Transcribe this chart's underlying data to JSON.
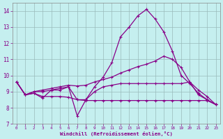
{
  "xlabel": "Windchill (Refroidissement éolien,°C)",
  "bg_color": "#c5efef",
  "line_color": "#880088",
  "grid_color": "#99bbbb",
  "ylim": [
    7,
    14.5
  ],
  "xlim": [
    -0.5,
    23.5
  ],
  "yticks": [
    7,
    8,
    9,
    10,
    11,
    12,
    13,
    14
  ],
  "xticks": [
    0,
    1,
    2,
    3,
    4,
    5,
    6,
    7,
    8,
    9,
    10,
    11,
    12,
    13,
    14,
    15,
    16,
    17,
    18,
    19,
    20,
    21,
    22,
    23
  ],
  "series": [
    [
      9.6,
      8.8,
      8.9,
      8.6,
      9.1,
      9.1,
      9.3,
      7.5,
      8.5,
      9.3,
      9.9,
      10.8,
      12.4,
      13.0,
      13.7,
      14.1,
      13.5,
      12.7,
      11.5,
      10.0,
      9.5,
      8.9,
      8.5,
      8.2
    ],
    [
      9.6,
      8.8,
      9.0,
      9.1,
      9.2,
      9.3,
      9.4,
      9.35,
      9.4,
      9.6,
      9.75,
      9.9,
      10.15,
      10.35,
      10.55,
      10.7,
      10.9,
      11.2,
      11.0,
      10.5,
      9.6,
      9.1,
      8.7,
      8.2
    ],
    [
      9.6,
      8.8,
      8.9,
      8.7,
      8.7,
      8.7,
      8.65,
      8.5,
      8.45,
      8.45,
      8.45,
      8.45,
      8.45,
      8.45,
      8.45,
      8.45,
      8.45,
      8.45,
      8.45,
      8.45,
      8.45,
      8.45,
      8.45,
      8.2
    ],
    [
      9.6,
      8.8,
      9.0,
      9.0,
      9.1,
      9.2,
      9.3,
      8.5,
      8.5,
      9.0,
      9.3,
      9.4,
      9.5,
      9.5,
      9.5,
      9.5,
      9.5,
      9.5,
      9.5,
      9.5,
      9.6,
      8.8,
      8.5,
      8.2
    ]
  ]
}
